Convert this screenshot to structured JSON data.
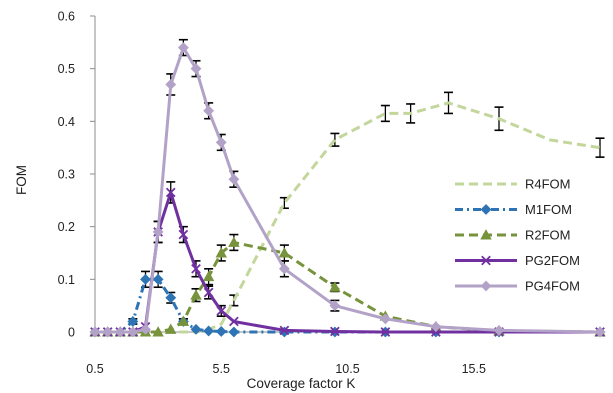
{
  "chart_data": {
    "type": "line",
    "title": "",
    "xlabel": "Coverage factor K",
    "ylabel": "FOM",
    "xlim": [
      0.5,
      20.5
    ],
    "ylim": [
      0,
      0.6
    ],
    "xticks": [
      0.5,
      5.5,
      10.5,
      15.5
    ],
    "xtick_labels": [
      "0.5",
      "5.5",
      "10.5",
      "15.5"
    ],
    "yticks": [
      0,
      0.1,
      0.2,
      0.3,
      0.4,
      0.5,
      0.6
    ],
    "ytick_labels": [
      "0",
      "0.1",
      "0.2",
      "0.3",
      "0.4",
      "0.5",
      "0.6"
    ],
    "grid": false,
    "legend_position": "right",
    "series": [
      {
        "name": "R4FOM",
        "color": "#c3d69b",
        "dash": "dash",
        "marker": "none",
        "x": [
          0.5,
          1,
          1.5,
          2,
          2.5,
          3,
          3.5,
          4,
          4.5,
          5,
          5.5,
          6,
          8,
          10,
          12,
          13,
          14.5,
          16.5,
          18.5,
          20.5
        ],
        "y": [
          0,
          0,
          0,
          0,
          0,
          0,
          0,
          0,
          0,
          0.005,
          0.015,
          0.06,
          0.245,
          0.365,
          0.415,
          0.415,
          0.435,
          0.405,
          0.365,
          0.35
        ],
        "errors": [
          0,
          0,
          0,
          0,
          0,
          0,
          0,
          0,
          0,
          0,
          0,
          0.01,
          0.01,
          0.012,
          0.015,
          0.018,
          0.02,
          0.022,
          0.02,
          0.018
        ],
        "error_shown": [
          false,
          false,
          false,
          false,
          false,
          false,
          false,
          false,
          false,
          false,
          false,
          true,
          true,
          true,
          true,
          true,
          true,
          true,
          false,
          true
        ]
      },
      {
        "name": "M1FOM",
        "color": "#2e74b5",
        "dash": "dashdot",
        "marker": "diamond",
        "x": [
          0.5,
          1,
          1.5,
          2,
          2.5,
          3,
          3.5,
          4,
          4.5,
          5,
          5.5,
          6,
          8,
          10,
          12,
          14,
          16.5,
          20.5
        ],
        "y": [
          0,
          0,
          0,
          0.02,
          0.1,
          0.1,
          0.065,
          0.02,
          0.005,
          0.002,
          0.001,
          0,
          0,
          0,
          0,
          0,
          0,
          0
        ],
        "errors": [
          0,
          0,
          0,
          0.005,
          0.015,
          0.015,
          0.01,
          0.005,
          0,
          0,
          0,
          0,
          0,
          0,
          0,
          0,
          0,
          0
        ],
        "error_shown": [
          false,
          false,
          false,
          true,
          true,
          true,
          true,
          true,
          false,
          false,
          false,
          false,
          false,
          false,
          false,
          false,
          false,
          false
        ]
      },
      {
        "name": "R2FOM",
        "color": "#77933c",
        "dash": "dash",
        "marker": "triangle",
        "x": [
          0.5,
          1,
          1.5,
          2,
          2.5,
          3,
          3.5,
          4,
          4.5,
          5,
          5.5,
          6,
          8,
          10,
          12,
          14,
          16.5,
          20.5
        ],
        "y": [
          0,
          0,
          0,
          0,
          0,
          0,
          0.005,
          0.02,
          0.07,
          0.105,
          0.15,
          0.17,
          0.15,
          0.085,
          0.03,
          0.01,
          0.002,
          0
        ],
        "errors": [
          0,
          0,
          0,
          0,
          0,
          0,
          0,
          0.005,
          0.012,
          0.015,
          0.015,
          0.015,
          0.015,
          0.008,
          0,
          0,
          0,
          0
        ],
        "error_shown": [
          false,
          false,
          false,
          false,
          false,
          false,
          false,
          true,
          true,
          true,
          true,
          true,
          true,
          true,
          false,
          false,
          false,
          false
        ]
      },
      {
        "name": "PG2FOM",
        "color": "#7030a0",
        "dash": "solid",
        "marker": "x",
        "x": [
          0.5,
          1,
          1.5,
          2,
          2.5,
          3,
          3.5,
          4,
          4.5,
          5,
          5.5,
          6,
          8,
          10,
          12,
          14,
          16.5,
          20.5
        ],
        "y": [
          0,
          0,
          0,
          0,
          0.01,
          0.19,
          0.265,
          0.185,
          0.12,
          0.075,
          0.04,
          0.02,
          0.003,
          0.001,
          0,
          0,
          0,
          0
        ],
        "errors": [
          0,
          0,
          0,
          0,
          0,
          0.02,
          0.02,
          0.015,
          0.015,
          0.012,
          0.01,
          0,
          0,
          0,
          0,
          0,
          0,
          0
        ],
        "error_shown": [
          false,
          false,
          false,
          false,
          false,
          true,
          true,
          true,
          true,
          true,
          true,
          false,
          false,
          false,
          false,
          false,
          false,
          false
        ]
      },
      {
        "name": "PG4FOM",
        "color": "#b3a2c7",
        "dash": "solid",
        "marker": "diamond",
        "x": [
          0.5,
          1,
          1.5,
          2,
          2.5,
          3,
          3.5,
          4,
          4.5,
          5,
          5.5,
          6,
          8,
          10,
          12,
          14,
          16.5,
          20.5
        ],
        "y": [
          0,
          0,
          0,
          0,
          0.005,
          0.19,
          0.47,
          0.54,
          0.5,
          0.42,
          0.36,
          0.29,
          0.12,
          0.05,
          0.025,
          0.01,
          0.003,
          0
        ],
        "errors": [
          0,
          0,
          0,
          0,
          0,
          0.02,
          0.02,
          0.015,
          0.015,
          0.015,
          0.015,
          0.015,
          0.015,
          0.01,
          0,
          0,
          0,
          0
        ],
        "error_shown": [
          false,
          false,
          false,
          false,
          false,
          true,
          true,
          true,
          true,
          true,
          true,
          true,
          true,
          true,
          false,
          false,
          false,
          false
        ]
      }
    ]
  }
}
